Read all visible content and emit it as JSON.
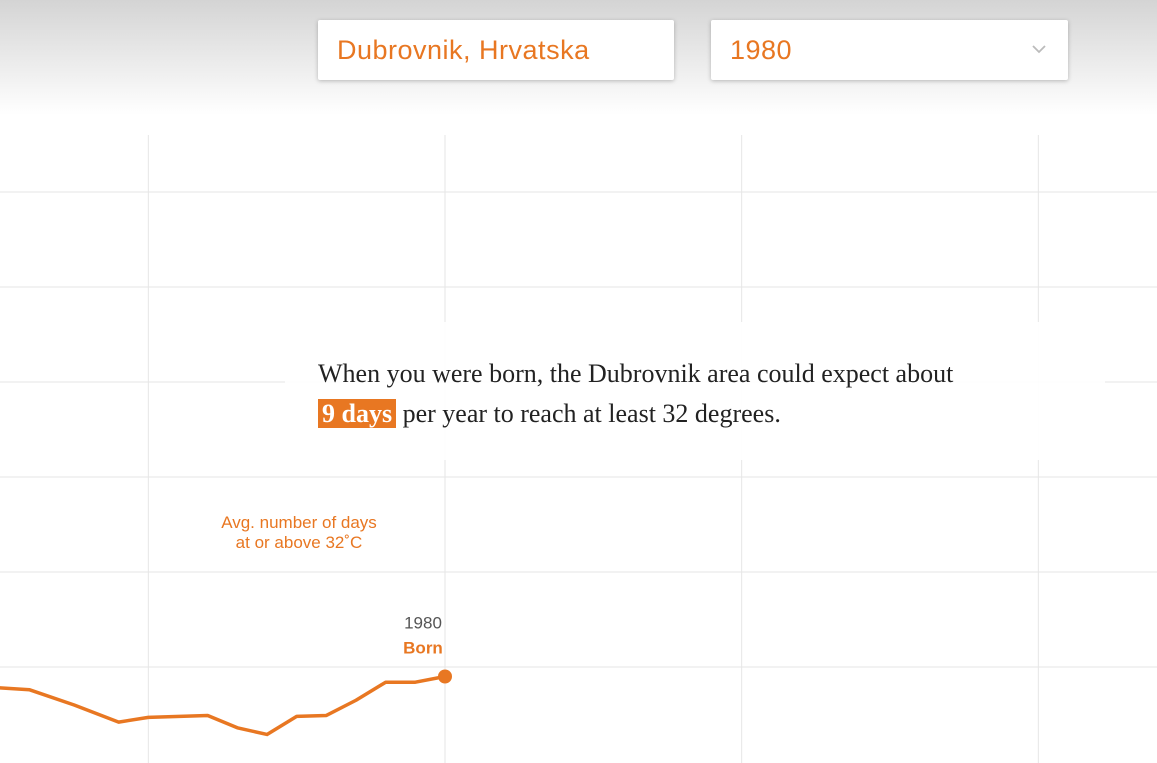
{
  "ui": {
    "location_select": "Dubrovnik, Hrvatska",
    "year_select": "1980",
    "sentence": {
      "before": "When you were born, the Dubrovnik area could expect about",
      "highlight": "9 days",
      "after": "per year to reach at least 32 degrees."
    }
  },
  "chart_data": {
    "type": "line",
    "y_label": [
      "Avg. number of days",
      "at or above 32˚C"
    ],
    "annotation": "Born",
    "x": [
      1950,
      1952,
      1955,
      1958,
      1960,
      1964,
      1966,
      1968,
      1970,
      1972,
      1974,
      1976,
      1978,
      1980
    ],
    "series": [
      {
        "color": "#e87722",
        "values": [
          7.8,
          7.6,
          6.0,
          4.2,
          4.7,
          4.9,
          3.6,
          2.9,
          4.8,
          4.9,
          6.5,
          8.4,
          8.4,
          9
        ]
      }
    ],
    "xlim": [
      1950,
      2028
    ],
    "xticks": [
      1960,
      1980,
      2000,
      2020
    ],
    "ylim": [
      0,
      66
    ],
    "yticks": [
      10,
      20,
      30,
      40,
      50,
      60
    ],
    "grid": true
  }
}
